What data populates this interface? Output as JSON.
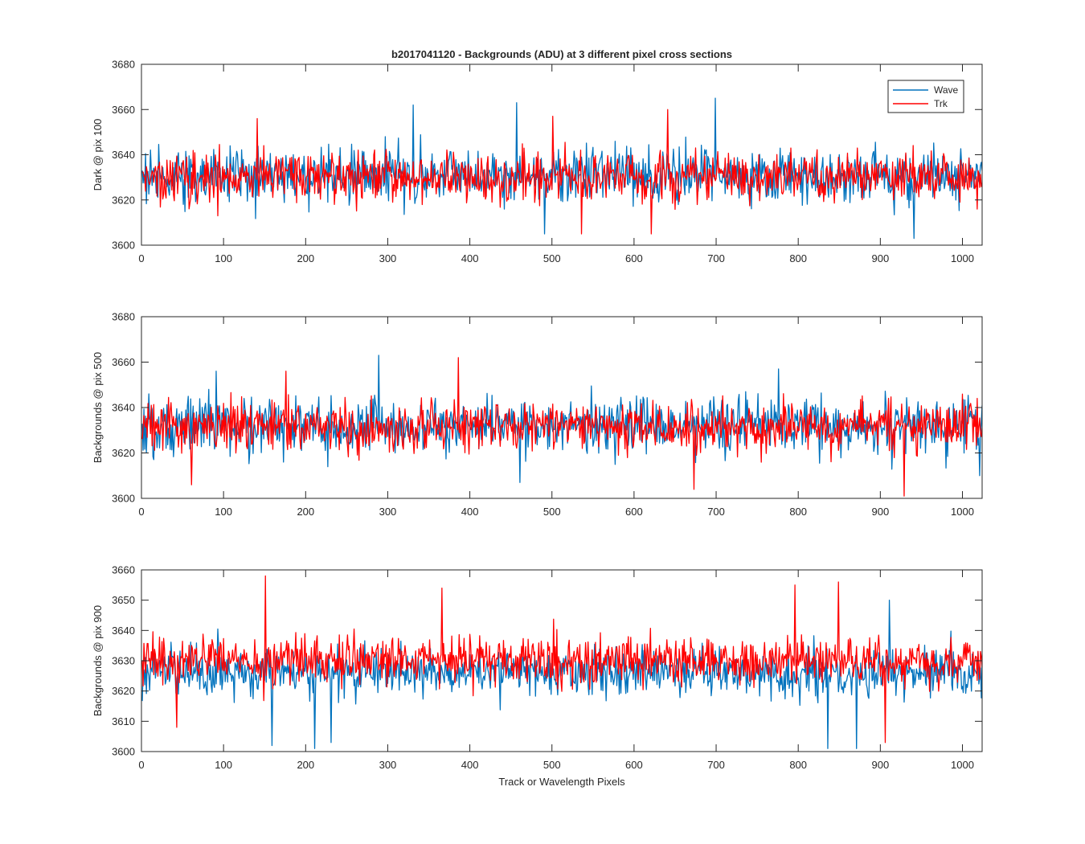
{
  "chart_data": [
    {
      "type": "line",
      "title": "b2017041120 - Backgrounds (ADU) at 3 different pixel cross sections",
      "xlabel": "",
      "ylabel": "Dark @ pix 100",
      "xlim": [
        0,
        1024
      ],
      "ylim": [
        3600,
        3680
      ],
      "xticks": [
        0,
        100,
        200,
        300,
        400,
        500,
        600,
        700,
        800,
        900,
        1000
      ],
      "yticks": [
        3600,
        3620,
        3640,
        3660,
        3680
      ],
      "legend": {
        "position": "top-right",
        "entries": [
          "Wave",
          "Trk"
        ]
      },
      "series": [
        {
          "name": "Wave",
          "color": "#0072BD",
          "mean": 3631,
          "spread": 14,
          "min": 3603,
          "max": 3665,
          "peaks": [
            [
              330,
              3662
            ],
            [
              456,
              3663
            ],
            [
              698,
              3665
            ],
            [
              940,
              3603
            ],
            [
              490,
              3605
            ]
          ]
        },
        {
          "name": "Trk",
          "color": "#FF0000",
          "mean": 3630,
          "spread": 13,
          "min": 3605,
          "max": 3660,
          "peaks": [
            [
              140,
              3656
            ],
            [
              500,
              3657
            ],
            [
              640,
              3660
            ],
            [
              535,
              3605
            ],
            [
              620,
              3605
            ]
          ]
        }
      ]
    },
    {
      "type": "line",
      "title": "",
      "xlabel": "",
      "ylabel": "Backgrounds @ pix 500",
      "xlim": [
        0,
        1024
      ],
      "ylim": [
        3600,
        3680
      ],
      "xticks": [
        0,
        100,
        200,
        300,
        400,
        500,
        600,
        700,
        800,
        900,
        1000
      ],
      "yticks": [
        3600,
        3620,
        3640,
        3660,
        3680
      ],
      "series": [
        {
          "name": "Wave",
          "color": "#0072BD",
          "mean": 3632,
          "spread": 14,
          "min": 3605,
          "max": 3663,
          "peaks": [
            [
              288,
              3663
            ],
            [
              775,
              3657
            ],
            [
              90,
              3656
            ],
            [
              460,
              3607
            ],
            [
              1020,
              3610
            ]
          ]
        },
        {
          "name": "Trk",
          "color": "#FF0000",
          "mean": 3632,
          "spread": 13,
          "min": 3601,
          "max": 3662,
          "peaks": [
            [
              385,
              3662
            ],
            [
              175,
              3656
            ],
            [
              928,
              3601
            ],
            [
              672,
              3604
            ],
            [
              60,
              3606
            ]
          ]
        }
      ]
    },
    {
      "type": "line",
      "title": "",
      "xlabel": "Track or Wavelength Pixels",
      "ylabel": "Backgrounds @ pix 900",
      "xlim": [
        0,
        1024
      ],
      "ylim": [
        3600,
        3660
      ],
      "xticks": [
        0,
        100,
        200,
        300,
        400,
        500,
        600,
        700,
        800,
        900,
        1000
      ],
      "yticks": [
        3600,
        3610,
        3620,
        3630,
        3640,
        3650,
        3660
      ],
      "series": [
        {
          "name": "Wave",
          "color": "#0072BD",
          "mean": 3626,
          "spread": 9,
          "min": 3601,
          "max": 3653,
          "peaks": [
            [
              210,
              3601
            ],
            [
              158,
              3602
            ],
            [
              230,
              3603
            ],
            [
              835,
              3601
            ],
            [
              870,
              3601
            ],
            [
              910,
              3650
            ]
          ]
        },
        {
          "name": "Trk",
          "color": "#FF0000",
          "mean": 3630,
          "spread": 9,
          "min": 3603,
          "max": 3658,
          "peaks": [
            [
              150,
              3658
            ],
            [
              795,
              3655
            ],
            [
              848,
              3656
            ],
            [
              365,
              3654
            ],
            [
              905,
              3603
            ],
            [
              42,
              3608
            ]
          ]
        }
      ]
    }
  ]
}
